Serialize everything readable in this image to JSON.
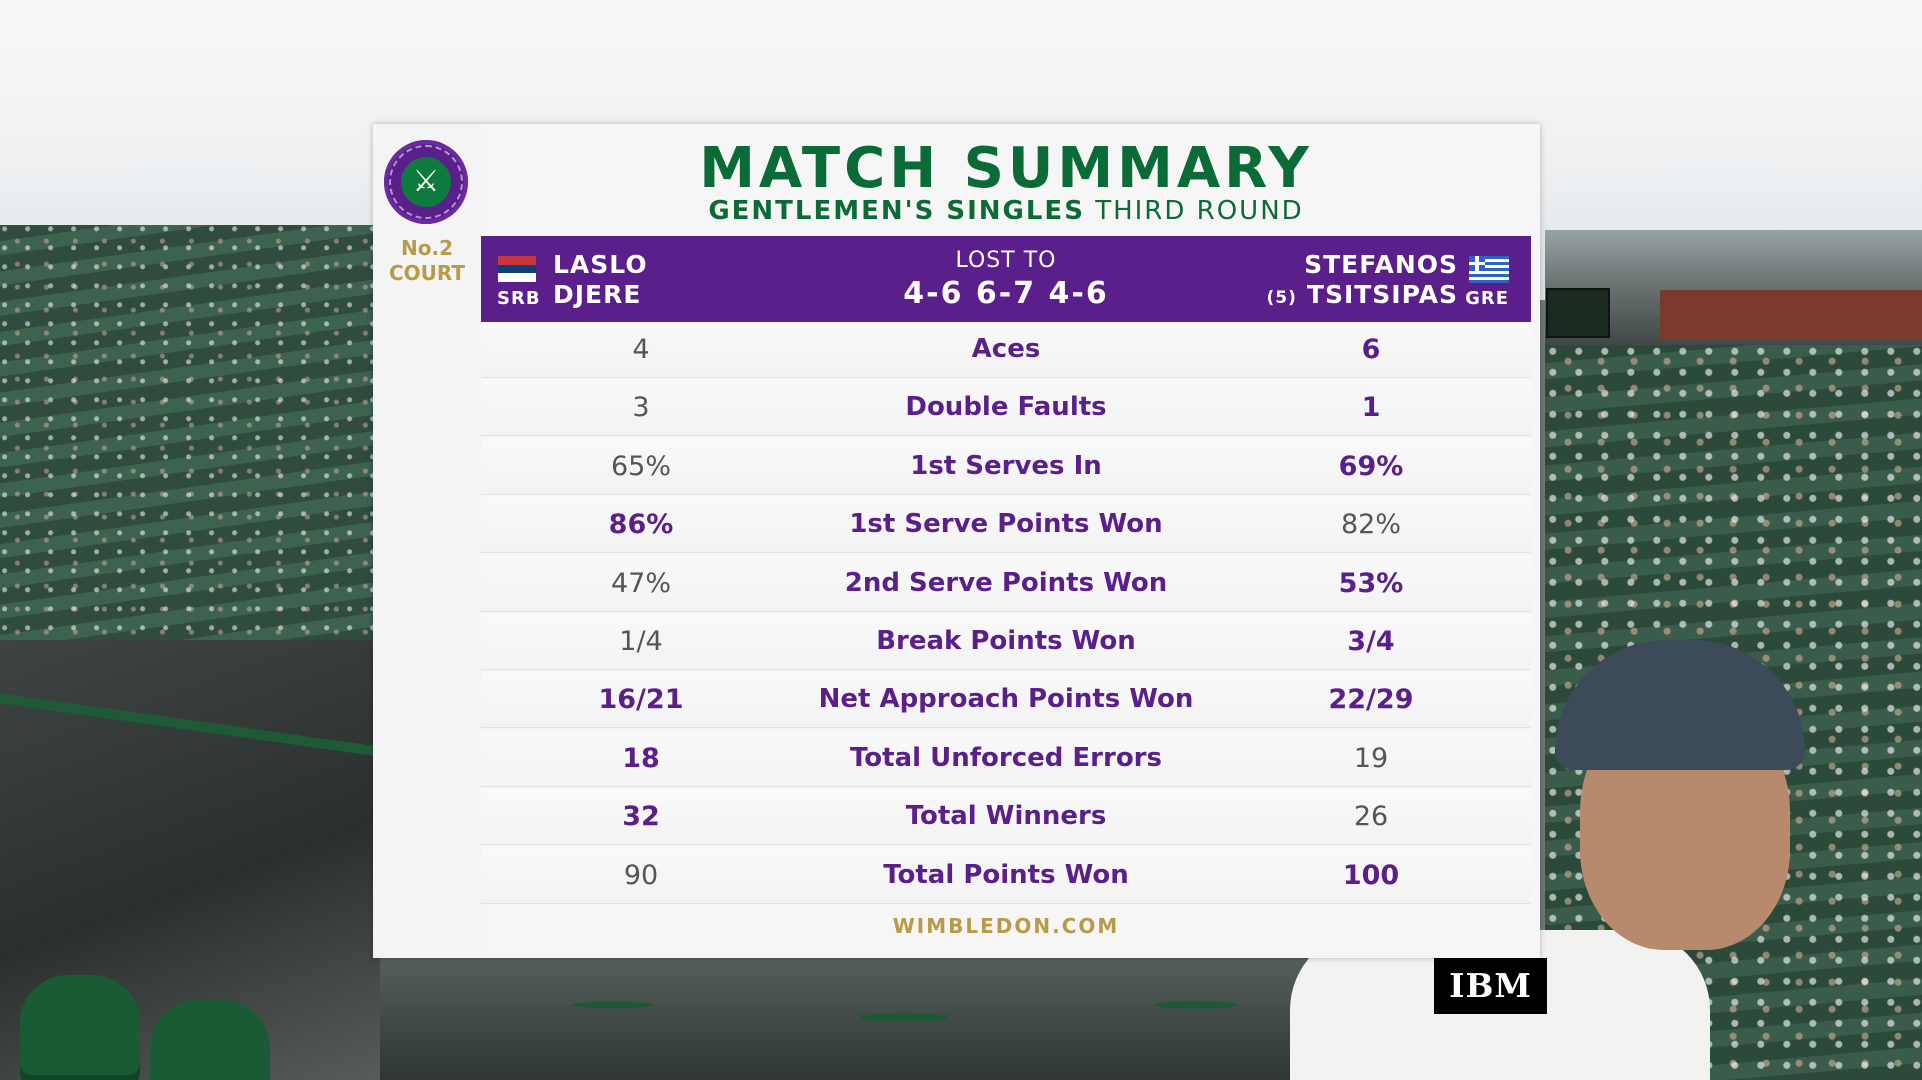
{
  "header": {
    "title": "MATCH SUMMARY",
    "event_bold": "GENTLEMEN'S SINGLES",
    "event_round": "THIRD ROUND",
    "court_line1": "No.2",
    "court_line2": "COURT"
  },
  "players": {
    "left": {
      "first": "LASLO",
      "last": "DJERE",
      "country": "SRB",
      "flag": "serbia-flag-icon"
    },
    "right": {
      "first": "STEFANOS",
      "last": "TSITSIPAS",
      "seed": "(5)",
      "country": "GRE",
      "flag": "greece-flag-icon"
    }
  },
  "result": {
    "label": "LOST TO",
    "score": "4-6 6-7 4-6"
  },
  "stats": [
    {
      "label": "Aces",
      "left": "4",
      "right": "6",
      "winner": "right"
    },
    {
      "label": "Double Faults",
      "left": "3",
      "right": "1",
      "winner": "right"
    },
    {
      "label": "1st Serves In",
      "left": "65%",
      "right": "69%",
      "winner": "right"
    },
    {
      "label": "1st Serve Points Won",
      "left": "86%",
      "right": "82%",
      "winner": "left"
    },
    {
      "label": "2nd Serve Points Won",
      "left": "47%",
      "right": "53%",
      "winner": "right"
    },
    {
      "label": "Break Points Won",
      "left": "1/4",
      "right": "3/4",
      "winner": "right"
    },
    {
      "label": "Net Approach Points Won",
      "left": "16/21",
      "right": "22/29",
      "winner": "both"
    },
    {
      "label": "Total Unforced Errors",
      "left": "18",
      "right": "19",
      "winner": "left"
    },
    {
      "label": "Total Winners",
      "left": "32",
      "right": "26",
      "winner": "left"
    },
    {
      "label": "Total Points Won",
      "left": "90",
      "right": "100",
      "winner": "right"
    }
  ],
  "footer": {
    "site": "WIMBLEDON.COM"
  },
  "sponsor": {
    "name": "IBM"
  },
  "colors": {
    "purple": "#5a1f8a",
    "green": "#0b6b36",
    "gold": "#b89b47"
  },
  "logo": {
    "icon": "wimbledon-crossed-rackets-logo"
  }
}
